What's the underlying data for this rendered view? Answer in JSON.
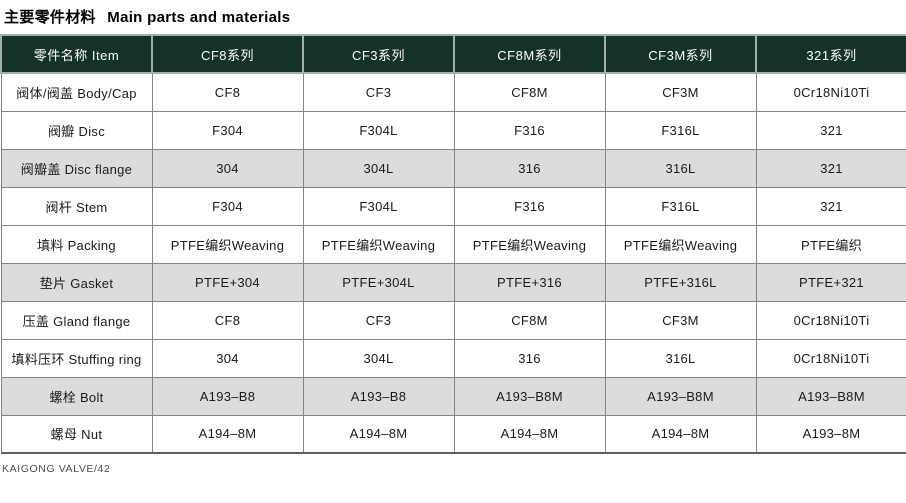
{
  "title": {
    "zh": "主要零件材料",
    "en": "Main parts and materials"
  },
  "table": {
    "headers": [
      "零件名称 Item",
      "CF8系列",
      "CF3系列",
      "CF8M系列",
      "CF3M系列",
      "321系列"
    ],
    "rows": [
      {
        "item": "阀体/阀盖 Body/Cap",
        "values": [
          "CF8",
          "CF3",
          "CF8M",
          "CF3M",
          "0Cr18Ni10Ti"
        ],
        "shaded": false
      },
      {
        "item": "阀瓣 Disc",
        "values": [
          "F304",
          "F304L",
          "F316",
          "F316L",
          "321"
        ],
        "shaded": false
      },
      {
        "item": "阀瓣盖 Disc flange",
        "values": [
          "304",
          "304L",
          "316",
          "316L",
          "321"
        ],
        "shaded": true
      },
      {
        "item": "阀杆 Stem",
        "values": [
          "F304",
          "F304L",
          "F316",
          "F316L",
          "321"
        ],
        "shaded": false
      },
      {
        "item": "填料 Packing",
        "values": [
          "PTFE编织Weaving",
          "PTFE编织Weaving",
          "PTFE编织Weaving",
          "PTFE编织Weaving",
          "PTFE编织"
        ],
        "shaded": false
      },
      {
        "item": "垫片 Gasket",
        "values": [
          "PTFE+304",
          "PTFE+304L",
          "PTFE+316",
          "PTFE+316L",
          "PTFE+321"
        ],
        "shaded": true
      },
      {
        "item": "压盖 Gland flange",
        "values": [
          "CF8",
          "CF3",
          "CF8M",
          "CF3M",
          "0Cr18Ni10Ti"
        ],
        "shaded": false
      },
      {
        "item": "填料压环 Stuffing ring",
        "values": [
          "304",
          "304L",
          "316",
          "316L",
          "0Cr18Ni10Ti"
        ],
        "shaded": false
      },
      {
        "item": "螺栓 Bolt",
        "values": [
          "A193–B8",
          "A193–B8",
          "A193–B8M",
          "A193–B8M",
          "A193–B8M"
        ],
        "shaded": true
      },
      {
        "item": "螺母 Nut",
        "values": [
          "A194–8M",
          "A194–8M",
          "A194–8M",
          "A194–8M",
          "A193–8M"
        ],
        "shaded": false
      }
    ]
  },
  "footer": {
    "text": "KAIGONG VALVE/42"
  },
  "colors": {
    "header_bg": "#14312a",
    "header_text": "#ffffff",
    "shaded_row": "#dcdcdc",
    "body_text": "#1a1a1a",
    "grid_line": "#848484",
    "header_grid": "#a2afab",
    "footer_text": "#4d4d4d"
  }
}
